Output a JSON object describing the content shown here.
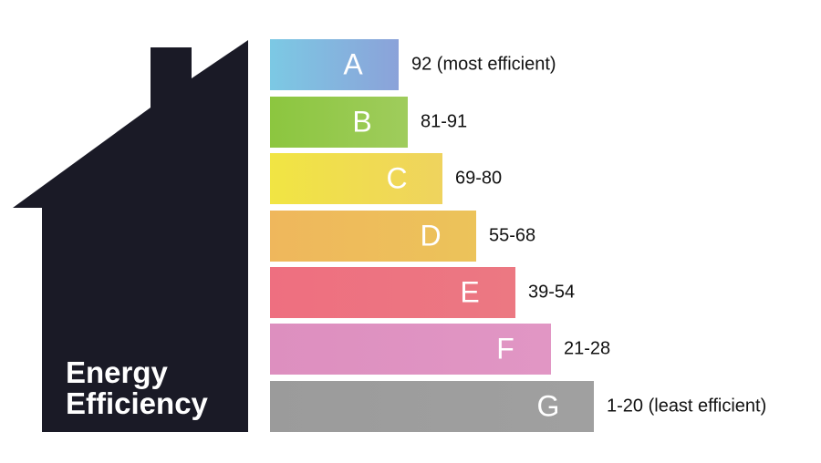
{
  "house": {
    "title_lines": [
      "Energy",
      "Efficiency"
    ]
  },
  "ratings": [
    {
      "letter": "A",
      "range": "92 (most efficient)"
    },
    {
      "letter": "B",
      "range": "81-91"
    },
    {
      "letter": "C",
      "range": "69-80"
    },
    {
      "letter": "D",
      "range": "55-68"
    },
    {
      "letter": "E",
      "range": "39-54"
    },
    {
      "letter": "F",
      "range": "21-28"
    },
    {
      "letter": "G",
      "range": "1-20 (least efficient)"
    }
  ]
}
